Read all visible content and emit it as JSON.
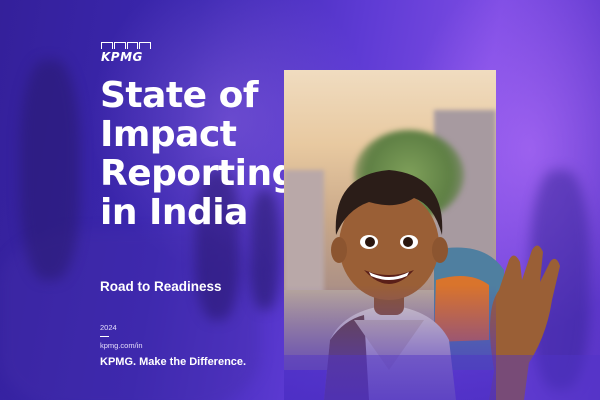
{
  "brand": {
    "logo": "KPMG"
  },
  "report": {
    "title": "State of\nImpact\nReporting\nin India",
    "subtitle": "Road to Readiness",
    "year": "2024",
    "url": "kpmg.com/in",
    "tagline": "KPMG. Make the Difference."
  },
  "colors": {
    "background": "#4a2fc0",
    "accent_purple": "#7d4ce4",
    "text": "#ffffff"
  },
  "photo": {
    "subject": "smiling-boy-waving-photo"
  }
}
